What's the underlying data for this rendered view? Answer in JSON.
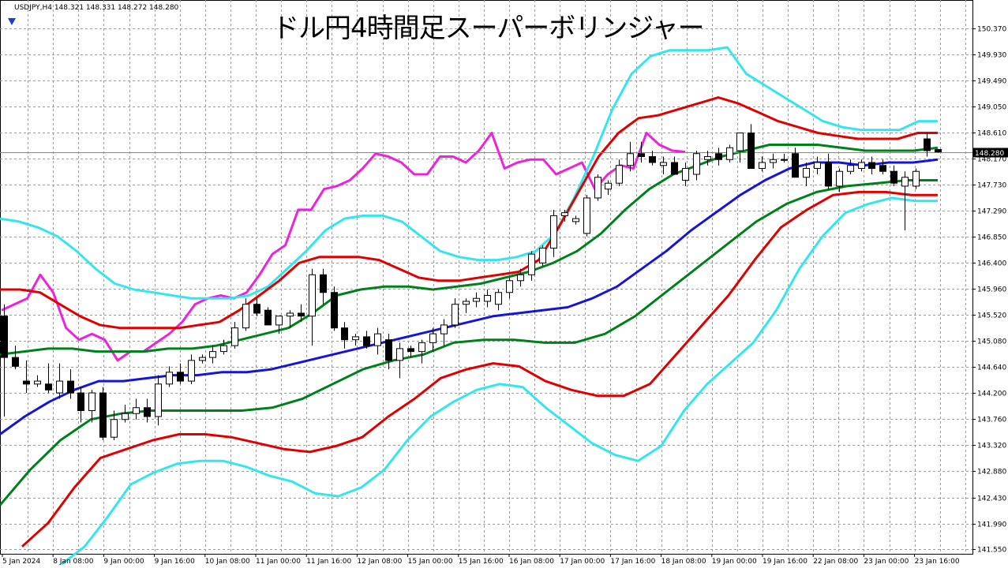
{
  "header": {
    "symbol_info": "USDJPY,H4  148.321 148.331 148.272 148.280",
    "title": "ドル円4時間足スーパーボリンジャー"
  },
  "price_label": "148.280",
  "colors": {
    "background": "#ffffff",
    "grid": "#9a9a9a",
    "bull_body": "#ffffff",
    "bear_body": "#000000",
    "candle_outline": "#000000",
    "center": "#1515d8",
    "sigma1": "#00801b",
    "sigma2": "#e00000",
    "sigma3": "#33e6ee",
    "chikou": "#ee22dd",
    "price_line": "#6e8f9c",
    "price_label_bg": "#000000",
    "price_label_fg": "#ffffff"
  },
  "chart_data": {
    "type": "candlestick",
    "symbol": "USDJPY",
    "timeframe": "H4",
    "ylim": [
      141.55,
      150.595
    ],
    "current_price": 148.28,
    "y_ticks": [
      "150.370",
      "149.930",
      "149.490",
      "149.050",
      "148.610",
      "148.170",
      "147.730",
      "147.290",
      "146.850",
      "146.400",
      "145.960",
      "145.520",
      "145.080",
      "144.640",
      "144.200",
      "143.760",
      "143.320",
      "142.880",
      "142.430",
      "141.990",
      "141.550"
    ],
    "x_ticks": [
      "5 Jan 2024",
      "8 Jan 08:00",
      "9 Jan 00:00",
      "9 Jan 16:00",
      "10 Jan 08:00",
      "11 Jan 00:00",
      "11 Jan 16:00",
      "12 Jan 08:00",
      "15 Jan 00:00",
      "15 Jan 16:00",
      "16 Jan 08:00",
      "17 Jan 00:00",
      "17 Jan 16:00",
      "18 Jan 08:00",
      "19 Jan 00:00",
      "19 Jan 16:00",
      "22 Jan 08:00",
      "23 Jan 00:00",
      "23 Jan 16:00"
    ],
    "candles": [
      {
        "o": 145.5,
        "h": 145.7,
        "l": 143.8,
        "c": 144.8
      },
      {
        "o": 144.8,
        "h": 145.0,
        "l": 144.6,
        "c": 144.65
      },
      {
        "o": 144.4,
        "h": 144.75,
        "l": 144.2,
        "c": 144.35
      },
      {
        "o": 144.35,
        "h": 144.5,
        "l": 144.3,
        "c": 144.4
      },
      {
        "o": 144.35,
        "h": 144.7,
        "l": 144.2,
        "c": 144.25
      },
      {
        "o": 144.2,
        "h": 144.7,
        "l": 144.1,
        "c": 144.4
      },
      {
        "o": 144.4,
        "h": 144.6,
        "l": 144.1,
        "c": 144.2
      },
      {
        "o": 144.2,
        "h": 144.3,
        "l": 143.7,
        "c": 143.9
      },
      {
        "o": 143.9,
        "h": 144.25,
        "l": 143.7,
        "c": 144.2
      },
      {
        "o": 144.2,
        "h": 144.3,
        "l": 143.4,
        "c": 143.45
      },
      {
        "o": 143.45,
        "h": 143.9,
        "l": 143.4,
        "c": 143.75
      },
      {
        "o": 143.75,
        "h": 144.0,
        "l": 143.7,
        "c": 143.85
      },
      {
        "o": 143.85,
        "h": 144.1,
        "l": 143.75,
        "c": 143.95
      },
      {
        "o": 143.95,
        "h": 144.1,
        "l": 143.7,
        "c": 143.8
      },
      {
        "o": 143.8,
        "h": 144.5,
        "l": 143.65,
        "c": 144.35
      },
      {
        "o": 144.35,
        "h": 144.65,
        "l": 144.3,
        "c": 144.55
      },
      {
        "o": 144.55,
        "h": 144.7,
        "l": 144.35,
        "c": 144.4
      },
      {
        "o": 144.4,
        "h": 144.85,
        "l": 144.35,
        "c": 144.75
      },
      {
        "o": 144.75,
        "h": 144.85,
        "l": 144.7,
        "c": 144.8
      },
      {
        "o": 144.8,
        "h": 145.0,
        "l": 144.7,
        "c": 144.9
      },
      {
        "o": 144.9,
        "h": 145.1,
        "l": 144.85,
        "c": 145.0
      },
      {
        "o": 145.0,
        "h": 145.4,
        "l": 144.95,
        "c": 145.3
      },
      {
        "o": 145.3,
        "h": 145.8,
        "l": 145.25,
        "c": 145.7
      },
      {
        "o": 145.7,
        "h": 145.8,
        "l": 145.5,
        "c": 145.55
      },
      {
        "o": 145.6,
        "h": 145.65,
        "l": 145.35,
        "c": 145.35
      },
      {
        "o": 145.35,
        "h": 145.5,
        "l": 145.2,
        "c": 145.5
      },
      {
        "o": 145.5,
        "h": 145.6,
        "l": 145.3,
        "c": 145.55
      },
      {
        "o": 145.55,
        "h": 145.7,
        "l": 145.4,
        "c": 145.5
      },
      {
        "o": 145.5,
        "h": 146.3,
        "l": 145.0,
        "c": 146.2
      },
      {
        "o": 146.2,
        "h": 146.3,
        "l": 145.7,
        "c": 145.9
      },
      {
        "o": 145.9,
        "h": 146.0,
        "l": 145.25,
        "c": 145.3
      },
      {
        "o": 145.3,
        "h": 145.4,
        "l": 144.95,
        "c": 145.1
      },
      {
        "o": 145.1,
        "h": 145.2,
        "l": 145.0,
        "c": 145.15
      },
      {
        "o": 145.15,
        "h": 145.25,
        "l": 144.95,
        "c": 145.0
      },
      {
        "o": 145.0,
        "h": 145.3,
        "l": 144.85,
        "c": 145.2
      },
      {
        "o": 145.1,
        "h": 145.2,
        "l": 144.6,
        "c": 144.75
      },
      {
        "o": 144.75,
        "h": 145.05,
        "l": 144.45,
        "c": 144.95
      },
      {
        "o": 144.95,
        "h": 145.0,
        "l": 144.8,
        "c": 144.9
      },
      {
        "o": 144.9,
        "h": 145.1,
        "l": 144.7,
        "c": 145.05
      },
      {
        "o": 145.05,
        "h": 145.3,
        "l": 144.9,
        "c": 145.2
      },
      {
        "o": 145.2,
        "h": 145.45,
        "l": 145.0,
        "c": 145.35
      },
      {
        "o": 145.35,
        "h": 145.8,
        "l": 145.3,
        "c": 145.7
      },
      {
        "o": 145.7,
        "h": 145.8,
        "l": 145.55,
        "c": 145.75
      },
      {
        "o": 145.75,
        "h": 145.9,
        "l": 145.65,
        "c": 145.8
      },
      {
        "o": 145.75,
        "h": 145.95,
        "l": 145.65,
        "c": 145.85
      },
      {
        "o": 145.7,
        "h": 145.95,
        "l": 145.6,
        "c": 145.9
      },
      {
        "o": 145.9,
        "h": 146.15,
        "l": 145.8,
        "c": 146.1
      },
      {
        "o": 146.1,
        "h": 146.3,
        "l": 146.0,
        "c": 146.2
      },
      {
        "o": 146.2,
        "h": 146.6,
        "l": 146.1,
        "c": 146.55
      },
      {
        "o": 146.4,
        "h": 146.7,
        "l": 146.35,
        "c": 146.65
      },
      {
        "o": 146.65,
        "h": 147.3,
        "l": 146.5,
        "c": 147.2
      },
      {
        "o": 147.2,
        "h": 147.3,
        "l": 147.1,
        "c": 147.25
      },
      {
        "o": 147.1,
        "h": 147.2,
        "l": 147.05,
        "c": 147.15
      },
      {
        "o": 146.9,
        "h": 147.55,
        "l": 146.85,
        "c": 147.5
      },
      {
        "o": 147.5,
        "h": 147.9,
        "l": 147.45,
        "c": 147.85
      },
      {
        "o": 147.65,
        "h": 147.8,
        "l": 147.55,
        "c": 147.75
      },
      {
        "o": 147.75,
        "h": 148.15,
        "l": 147.7,
        "c": 148.05
      },
      {
        "o": 148.05,
        "h": 148.45,
        "l": 147.95,
        "c": 148.25
      },
      {
        "o": 148.25,
        "h": 148.45,
        "l": 148.1,
        "c": 148.2
      },
      {
        "o": 148.2,
        "h": 148.3,
        "l": 148.05,
        "c": 148.1
      },
      {
        "o": 148.05,
        "h": 148.2,
        "l": 147.9,
        "c": 148.1
      },
      {
        "o": 148.1,
        "h": 148.2,
        "l": 147.9,
        "c": 147.9
      },
      {
        "o": 147.8,
        "h": 148.1,
        "l": 147.7,
        "c": 148.0
      },
      {
        "o": 147.9,
        "h": 148.3,
        "l": 147.8,
        "c": 148.25
      },
      {
        "o": 148.15,
        "h": 148.3,
        "l": 148.05,
        "c": 148.2
      },
      {
        "o": 148.25,
        "h": 148.35,
        "l": 148.05,
        "c": 148.15
      },
      {
        "o": 148.15,
        "h": 148.4,
        "l": 148.1,
        "c": 148.35
      },
      {
        "o": 148.3,
        "h": 148.6,
        "l": 148.1,
        "c": 148.6
      },
      {
        "o": 148.6,
        "h": 148.75,
        "l": 148.0,
        "c": 148.0
      },
      {
        "o": 148.0,
        "h": 148.2,
        "l": 147.95,
        "c": 148.1
      },
      {
        "o": 148.1,
        "h": 148.25,
        "l": 148.0,
        "c": 148.15
      },
      {
        "o": 148.15,
        "h": 148.25,
        "l": 148.1,
        "c": 148.15
      },
      {
        "o": 148.25,
        "h": 148.35,
        "l": 147.85,
        "c": 147.85
      },
      {
        "o": 147.85,
        "h": 148.1,
        "l": 147.7,
        "c": 148.0
      },
      {
        "o": 148.0,
        "h": 148.2,
        "l": 147.9,
        "c": 148.1
      },
      {
        "o": 148.1,
        "h": 148.25,
        "l": 147.65,
        "c": 147.7
      },
      {
        "o": 147.7,
        "h": 148.0,
        "l": 147.6,
        "c": 147.95
      },
      {
        "o": 147.95,
        "h": 148.15,
        "l": 147.9,
        "c": 148.05
      },
      {
        "o": 148.0,
        "h": 148.15,
        "l": 147.95,
        "c": 148.1
      },
      {
        "o": 148.1,
        "h": 148.2,
        "l": 147.9,
        "c": 148.0
      },
      {
        "o": 148.05,
        "h": 148.15,
        "l": 147.9,
        "c": 147.95
      },
      {
        "o": 147.95,
        "h": 148.05,
        "l": 147.7,
        "c": 147.75
      },
      {
        "o": 147.7,
        "h": 147.95,
        "l": 146.95,
        "c": 147.85
      },
      {
        "o": 147.7,
        "h": 148.0,
        "l": 147.65,
        "c": 147.95
      },
      {
        "o": 148.5,
        "h": 148.6,
        "l": 148.2,
        "c": 148.3
      },
      {
        "o": 148.32,
        "h": 148.33,
        "l": 148.27,
        "c": 148.28
      }
    ],
    "series": [
      {
        "key": "chikou",
        "color": "#ee22dd",
        "values": [
          145.6,
          145.7,
          145.8,
          146.2,
          145.9,
          145.3,
          145.1,
          145.2,
          145.1,
          144.75,
          144.9,
          144.9,
          145.05,
          145.2,
          145.4,
          145.7,
          145.8,
          145.85,
          145.8,
          145.9,
          146.2,
          146.55,
          146.7,
          147.3,
          147.3,
          147.65,
          147.7,
          147.8,
          148.0,
          148.25,
          148.2,
          148.1,
          147.9,
          147.9,
          148.2,
          148.2,
          148.1,
          148.3,
          148.6,
          148.0,
          148.1,
          148.15,
          148.15,
          147.9,
          148.0,
          148.1,
          147.65,
          147.9,
          148.05,
          148.0,
          148.6,
          148.4,
          148.3,
          148.28
        ]
      },
      {
        "key": "sigma3",
        "color": "#33e6ee",
        "values": [
          147.15,
          147.1,
          147.0,
          146.85,
          146.6,
          146.3,
          146.05,
          145.95,
          145.9,
          145.85,
          145.8,
          145.8,
          145.8,
          145.85,
          146.0,
          146.3,
          146.6,
          146.95,
          147.15,
          147.2,
          147.2,
          147.1,
          146.85,
          146.6,
          146.5,
          146.45,
          146.45,
          146.5,
          146.6,
          146.9,
          147.5,
          148.2,
          149.0,
          149.6,
          149.9,
          150.0,
          150.0,
          150.0,
          150.05,
          149.6,
          149.4,
          149.2,
          149.0,
          148.8,
          148.7,
          148.65,
          148.65,
          148.65,
          148.8,
          148.8
        ]
      },
      {
        "key": "sigma2",
        "color": "#e00000",
        "values": [
          145.95,
          145.95,
          145.9,
          145.7,
          145.5,
          145.35,
          145.3,
          145.3,
          145.3,
          145.3,
          145.35,
          145.4,
          145.6,
          145.85,
          146.1,
          146.4,
          146.5,
          146.5,
          146.5,
          146.45,
          146.3,
          146.15,
          146.1,
          146.1,
          146.15,
          146.2,
          146.25,
          146.45,
          147.0,
          147.6,
          148.2,
          148.6,
          148.85,
          148.9,
          149.0,
          149.1,
          149.2,
          149.1,
          148.95,
          148.8,
          148.7,
          148.6,
          148.55,
          148.5,
          148.5,
          148.5,
          148.6,
          148.6
        ]
      },
      {
        "key": "sigma1",
        "color": "#00801b",
        "values": [
          144.85,
          144.9,
          144.95,
          144.95,
          144.9,
          144.9,
          144.9,
          144.95,
          144.95,
          145.0,
          145.1,
          145.2,
          145.3,
          145.55,
          145.85,
          145.95,
          146.0,
          146.0,
          145.95,
          146.0,
          146.05,
          146.15,
          146.25,
          146.4,
          146.6,
          146.9,
          147.3,
          147.65,
          147.9,
          148.05,
          148.2,
          148.3,
          148.4,
          148.4,
          148.4,
          148.35,
          148.3,
          148.3,
          148.3,
          148.35
        ]
      },
      {
        "key": "center",
        "color": "#1515d8",
        "values": [
          143.5,
          143.8,
          144.05,
          144.25,
          144.4,
          144.4,
          144.45,
          144.5,
          144.5,
          144.55,
          144.55,
          144.6,
          144.7,
          144.8,
          144.9,
          145.0,
          145.1,
          145.2,
          145.3,
          145.4,
          145.5,
          145.55,
          145.6,
          145.65,
          145.8,
          146.0,
          146.3,
          146.6,
          146.95,
          147.25,
          147.55,
          147.8,
          148.0,
          148.1,
          148.1,
          148.05,
          148.1,
          148.1,
          148.15
        ]
      },
      {
        "key": "sigma1_lower",
        "color": "#00801b",
        "values": [
          142.3,
          142.9,
          143.4,
          143.75,
          143.85,
          143.9,
          143.9,
          143.9,
          143.9,
          143.95,
          144.1,
          144.35,
          144.6,
          144.75,
          144.85,
          145.05,
          145.1,
          145.1,
          145.05,
          145.05,
          145.2,
          145.5,
          145.9,
          146.3,
          146.7,
          147.1,
          147.4,
          147.6,
          147.7,
          147.75,
          147.8,
          147.8
        ]
      },
      {
        "key": "sigma2_lower",
        "color": "#e00000",
        "values": [
          141.6,
          142.0,
          142.6,
          143.1,
          143.25,
          143.4,
          143.5,
          143.5,
          143.45,
          143.35,
          143.25,
          143.2,
          143.3,
          143.45,
          143.8,
          144.1,
          144.45,
          144.6,
          144.7,
          144.65,
          144.4,
          144.25,
          144.15,
          144.15,
          144.35,
          144.85,
          145.35,
          145.85,
          146.45,
          147.0,
          147.3,
          147.55,
          147.6,
          147.6,
          147.55,
          147.55
        ]
      },
      {
        "key": "sigma3_lower",
        "color": "#33e6ee",
        "values": [
          141.3,
          141.6,
          142.1,
          142.65,
          142.85,
          143.0,
          143.05,
          143.05,
          142.95,
          142.8,
          142.7,
          142.5,
          142.45,
          142.6,
          142.9,
          143.4,
          143.8,
          144.05,
          144.25,
          144.35,
          144.3,
          143.95,
          143.65,
          143.35,
          143.15,
          143.05,
          143.3,
          143.9,
          144.35,
          144.7,
          145.05,
          145.6,
          146.3,
          146.85,
          147.25,
          147.4,
          147.5,
          147.45,
          147.45
        ]
      }
    ]
  }
}
